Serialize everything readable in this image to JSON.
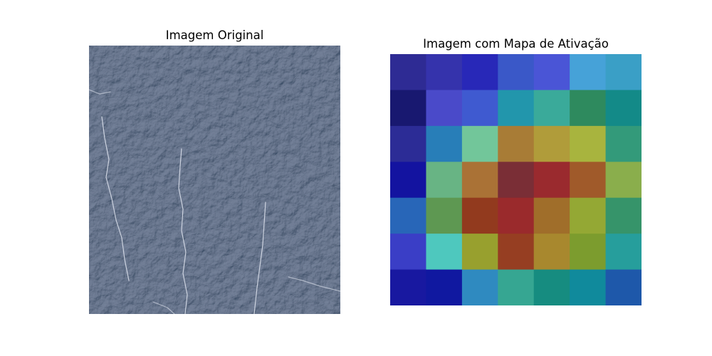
{
  "panels": {
    "left": {
      "title": "Imagem Original"
    },
    "right": {
      "title": "Imagem com Mapa de Ativação"
    }
  },
  "texture": {
    "base_color": "#4a5a78",
    "shadow_color": "#2c3750",
    "highlight_color": "#8696b5",
    "crack_color": "#dfe4ee"
  },
  "heatmap": {
    "rows": 7,
    "cols": 7,
    "cells": [
      [
        "#2e2b94",
        "#3533ac",
        "#2828b8",
        "#3a58c8",
        "#4a55d6",
        "#46a2d8",
        "#3a9fc6"
      ],
      [
        "#181870",
        "#4a4ac9",
        "#3f5ad0",
        "#2296ac",
        "#3aaa9a",
        "#2e8a5e",
        "#138a88"
      ],
      [
        "#2c2c96",
        "#287eb8",
        "#72c69a",
        "#a87c36",
        "#b09c3a",
        "#a8b43e",
        "#339a7a"
      ],
      [
        "#1313a0",
        "#68b484",
        "#aa7236",
        "#7a2e36",
        "#9a2a2e",
        "#a05a2a",
        "#8aae4c"
      ],
      [
        "#2866b8",
        "#5e9852",
        "#923a1e",
        "#9a2a2c",
        "#a06e2a",
        "#94a834",
        "#36946a"
      ],
      [
        "#3a3ec6",
        "#4ec8be",
        "#98a02e",
        "#963e22",
        "#a8882e",
        "#7c9c2e",
        "#269e9c"
      ],
      [
        "#1818a0",
        "#1018a0",
        "#2f8ac0",
        "#36a692",
        "#168c80",
        "#108a9c",
        "#1e58aa"
      ]
    ]
  }
}
